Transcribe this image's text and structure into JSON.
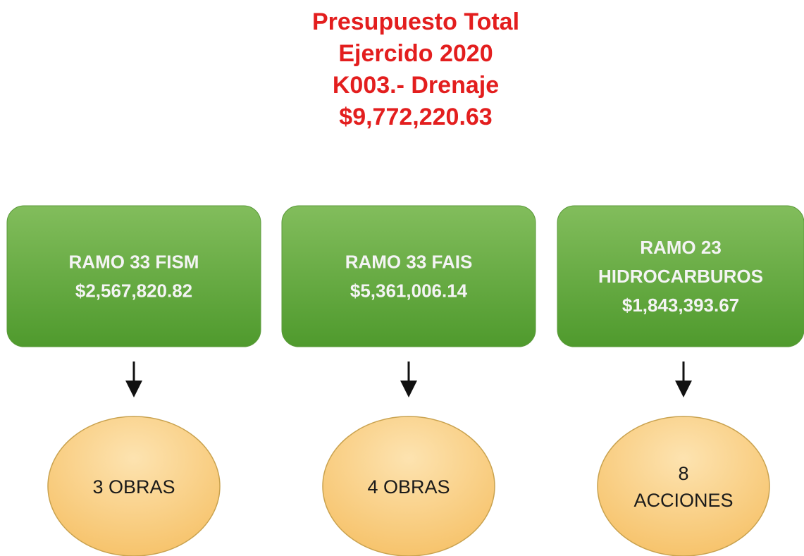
{
  "title": {
    "lines": [
      "Presupuesto Total",
      "Ejercido 2020",
      "K003.- Drenaje",
      "$9,772,220.63"
    ]
  },
  "boxes": [
    {
      "lines": [
        "RAMO 33 FISM",
        "$2,567,820.82"
      ]
    },
    {
      "lines": [
        "RAMO 33 FAIS",
        "$5,361,006.14"
      ]
    },
    {
      "lines": [
        "RAMO 23",
        "HIDROCARBUROS",
        "$1,843,393.67"
      ]
    }
  ],
  "results": [
    {
      "lines": [
        "3 OBRAS"
      ]
    },
    {
      "lines": [
        "4 OBRAS"
      ]
    },
    {
      "lines": [
        "8",
        "ACCIONES"
      ]
    }
  ]
}
